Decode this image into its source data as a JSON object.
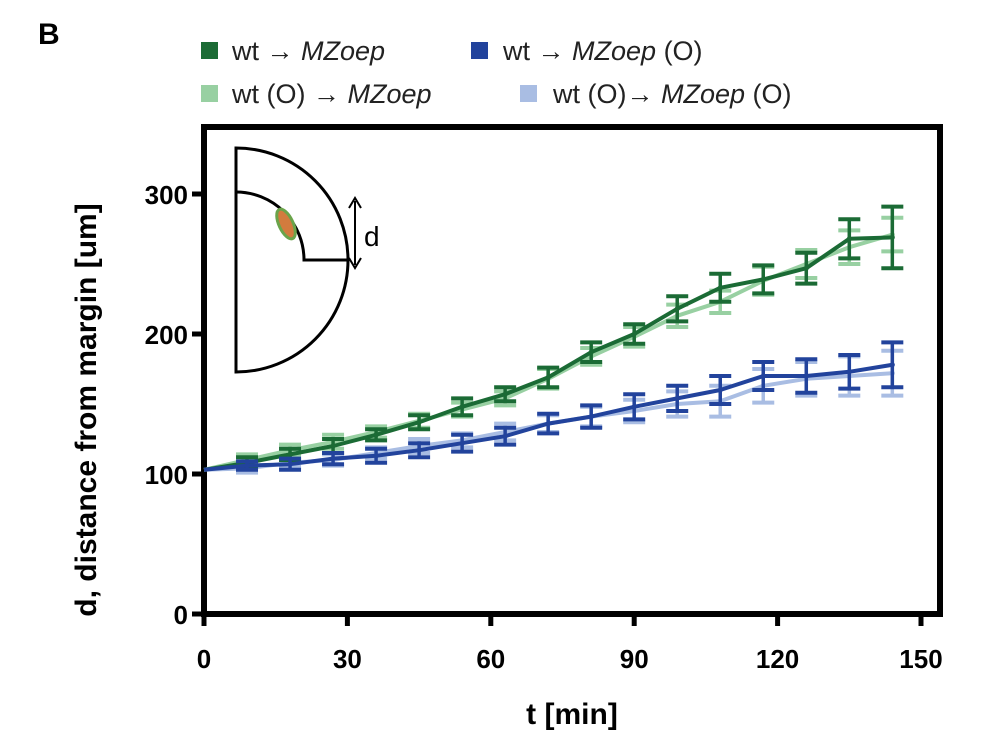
{
  "panel_letter": "B",
  "chart_data": {
    "type": "line",
    "xlabel": "t [min]",
    "ylabel": "d, distance from margin [um]",
    "xlim": [
      0,
      150
    ],
    "ylim": [
      0,
      340
    ],
    "xticks": [
      0,
      30,
      60,
      90,
      120,
      150
    ],
    "yticks": [
      0,
      100,
      200,
      300
    ],
    "grid": false,
    "legend_position": "top",
    "inset_label": "d",
    "x": [
      0,
      9,
      18,
      27,
      36,
      45,
      54,
      63,
      72,
      81,
      90,
      99,
      108,
      117,
      126,
      135,
      144
    ],
    "series": [
      {
        "name": "wt → MZoep",
        "legend_parts": [
          {
            "text": "wt → ",
            "italic": false
          },
          {
            "text": "MZoep",
            "italic": true
          }
        ],
        "color": "#1b6b35",
        "values": [
          103,
          108,
          114,
          120,
          128,
          137,
          148,
          157,
          169,
          187,
          200,
          218,
          233,
          239,
          247,
          268,
          269
        ],
        "errors": [
          2,
          4,
          4,
          5,
          4,
          5,
          6,
          5,
          7,
          7,
          7,
          9,
          10,
          10,
          11,
          14,
          22
        ]
      },
      {
        "name": "wt (O) → MZoep",
        "legend_parts": [
          {
            "text": "wt (O) → ",
            "italic": false
          },
          {
            "text": "MZoep",
            "italic": true
          }
        ],
        "color": "#98d0a2",
        "values": [
          103,
          110,
          117,
          123,
          130,
          138,
          146,
          154,
          168,
          184,
          198,
          213,
          223,
          238,
          250,
          262,
          271
        ],
        "errors": [
          2,
          4,
          4,
          5,
          4,
          5,
          5,
          5,
          7,
          6,
          7,
          8,
          8,
          10,
          10,
          12,
          12
        ]
      },
      {
        "name": "wt → MZoep (O)",
        "legend_parts": [
          {
            "text": "wt → ",
            "italic": false
          },
          {
            "text": "MZoep",
            "italic": true
          },
          {
            "text": " (O)",
            "italic": false
          }
        ],
        "color": "#22439c",
        "values": [
          103,
          106,
          107,
          111,
          113,
          117,
          122,
          127,
          136,
          141,
          148,
          154,
          160,
          170,
          170,
          173,
          178
        ],
        "errors": [
          2,
          3,
          4,
          4,
          5,
          5,
          6,
          6,
          7,
          8,
          9,
          9,
          10,
          10,
          12,
          12,
          16
        ]
      },
      {
        "name": "wt (O) → MZoep (O)",
        "legend_parts": [
          {
            "text": "wt (O)→ ",
            "italic": false
          },
          {
            "text": "MZoep",
            "italic": true
          },
          {
            "text": " (O)",
            "italic": false
          }
        ],
        "color": "#a9bde3",
        "values": [
          103,
          104,
          108,
          110,
          115,
          120,
          124,
          130,
          136,
          141,
          145,
          150,
          152,
          163,
          168,
          170,
          172
        ],
        "errors": [
          2,
          3,
          3,
          4,
          4,
          5,
          5,
          6,
          6,
          7,
          8,
          9,
          11,
          12,
          12,
          14,
          16
        ]
      }
    ]
  }
}
